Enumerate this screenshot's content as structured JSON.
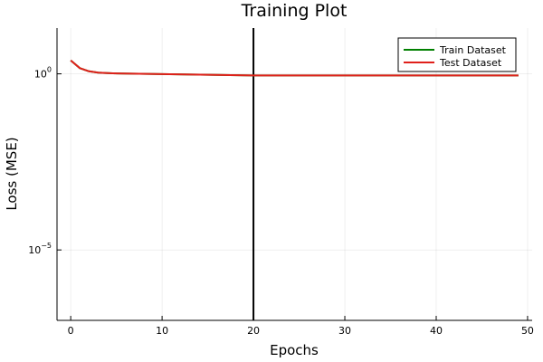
{
  "chart_data": {
    "type": "line",
    "title": "Training Plot",
    "xlabel": "Epochs",
    "ylabel": "Loss (MSE)",
    "xlim": [
      -1.5,
      50.5
    ],
    "ylim_log10": [
      -7,
      1.3
    ],
    "yscale": "log",
    "grid": true,
    "legend_position": "top-right",
    "x_ticks": [
      0,
      10,
      20,
      30,
      40,
      50
    ],
    "x_tick_labels": [
      "0",
      "10",
      "20",
      "30",
      "40",
      "50"
    ],
    "y_ticks_log10": [
      0,
      -5
    ],
    "y_tick_labels": [
      {
        "base": "10",
        "exp": "0"
      },
      {
        "base": "10",
        "exp": "−5"
      }
    ],
    "vline": {
      "x": 20,
      "color": "#000000"
    },
    "series": [
      {
        "name": "Train Dataset",
        "color": "#008000",
        "x": [
          0,
          1,
          2,
          3,
          4,
          5,
          10,
          15,
          20,
          25,
          30,
          35,
          40,
          45,
          49
        ],
        "y": [
          2.4,
          1.45,
          1.18,
          1.08,
          1.05,
          1.03,
          0.98,
          0.94,
          0.9,
          0.9,
          0.9,
          0.9,
          0.9,
          0.9,
          0.9
        ]
      },
      {
        "name": "Test Dataset",
        "color": "#e0201b",
        "x": [
          0,
          1,
          2,
          3,
          4,
          5,
          10,
          15,
          20,
          25,
          30,
          35,
          40,
          45,
          49
        ],
        "y": [
          2.4,
          1.45,
          1.18,
          1.08,
          1.05,
          1.03,
          0.98,
          0.94,
          0.9,
          0.9,
          0.9,
          0.9,
          0.9,
          0.9,
          0.9
        ]
      }
    ]
  }
}
